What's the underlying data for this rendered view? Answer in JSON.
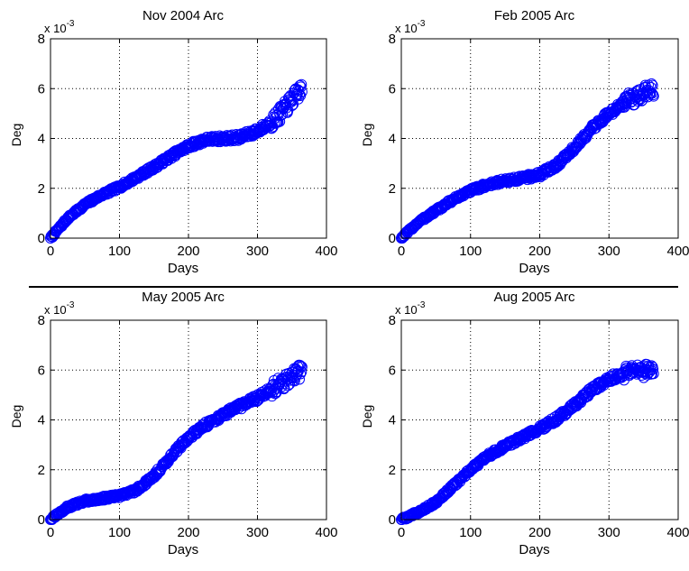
{
  "figure": {
    "marker_color": "#0000ff",
    "axes_color": "#000000",
    "grid_style": "dotted",
    "separator": "horizontal rule between top and bottom rows"
  },
  "chart_data": [
    {
      "type": "scatter",
      "title": "Nov 2004 Arc",
      "xlabel": "Days",
      "ylabel": "Deg",
      "exponent_label": "x 10",
      "exponent_power": "-3",
      "xlim": [
        0,
        400
      ],
      "ylim": [
        0,
        8
      ],
      "xticks": [
        "0",
        "100",
        "200",
        "300",
        "400"
      ],
      "yticks": [
        "0",
        "2",
        "4",
        "6",
        "8"
      ],
      "grid": true,
      "marker": "open-circle",
      "curve": {
        "x": [
          0,
          25,
          50,
          75,
          100,
          125,
          150,
          175,
          200,
          225,
          250,
          275,
          300,
          325,
          340,
          350,
          365
        ],
        "y": [
          0.0,
          0.8,
          1.35,
          1.75,
          2.05,
          2.45,
          2.85,
          3.3,
          3.7,
          3.95,
          4.0,
          4.05,
          4.3,
          4.75,
          5.2,
          5.55,
          6.0
        ]
      }
    },
    {
      "type": "scatter",
      "title": "Feb 2005 Arc",
      "xlabel": "Days",
      "ylabel": "Deg",
      "exponent_label": "x 10",
      "exponent_power": "-3",
      "xlim": [
        0,
        400
      ],
      "ylim": [
        0,
        8
      ],
      "xticks": [
        "0",
        "100",
        "200",
        "300",
        "400"
      ],
      "yticks": [
        "0",
        "2",
        "4",
        "6",
        "8"
      ],
      "grid": true,
      "marker": "open-circle",
      "curve": {
        "x": [
          0,
          25,
          50,
          75,
          100,
          125,
          150,
          175,
          200,
          225,
          250,
          275,
          300,
          325,
          350,
          365
        ],
        "y": [
          0.0,
          0.65,
          1.1,
          1.55,
          1.9,
          2.15,
          2.3,
          2.4,
          2.55,
          2.95,
          3.6,
          4.4,
          5.0,
          5.5,
          5.8,
          6.0
        ]
      }
    },
    {
      "type": "scatter",
      "title": "May 2005 Arc",
      "xlabel": "Days",
      "ylabel": "Deg",
      "exponent_label": "x 10",
      "exponent_power": "-3",
      "xlim": [
        0,
        400
      ],
      "ylim": [
        0,
        8
      ],
      "xticks": [
        "0",
        "100",
        "200",
        "300",
        "400"
      ],
      "yticks": [
        "0",
        "2",
        "4",
        "6",
        "8"
      ],
      "grid": true,
      "marker": "open-circle",
      "curve": {
        "x": [
          0,
          25,
          50,
          75,
          100,
          125,
          150,
          175,
          200,
          225,
          250,
          275,
          300,
          325,
          350,
          365
        ],
        "y": [
          0.0,
          0.5,
          0.75,
          0.85,
          0.95,
          1.2,
          1.75,
          2.55,
          3.3,
          3.8,
          4.2,
          4.55,
          4.9,
          5.3,
          5.75,
          6.0
        ]
      }
    },
    {
      "type": "scatter",
      "title": "Aug 2005 Arc",
      "xlabel": "Days",
      "ylabel": "Deg",
      "exponent_label": "x 10",
      "exponent_power": "-3",
      "xlim": [
        0,
        400
      ],
      "ylim": [
        0,
        8
      ],
      "xticks": [
        "0",
        "100",
        "200",
        "300",
        "400"
      ],
      "yticks": [
        "0",
        "2",
        "4",
        "6",
        "8"
      ],
      "grid": true,
      "marker": "open-circle",
      "curve": {
        "x": [
          0,
          25,
          50,
          75,
          100,
          125,
          150,
          175,
          200,
          225,
          250,
          275,
          300,
          325,
          350,
          365
        ],
        "y": [
          0.0,
          0.3,
          0.7,
          1.35,
          2.0,
          2.55,
          2.95,
          3.3,
          3.65,
          4.05,
          4.6,
          5.2,
          5.65,
          5.9,
          5.95,
          5.9
        ]
      }
    }
  ]
}
